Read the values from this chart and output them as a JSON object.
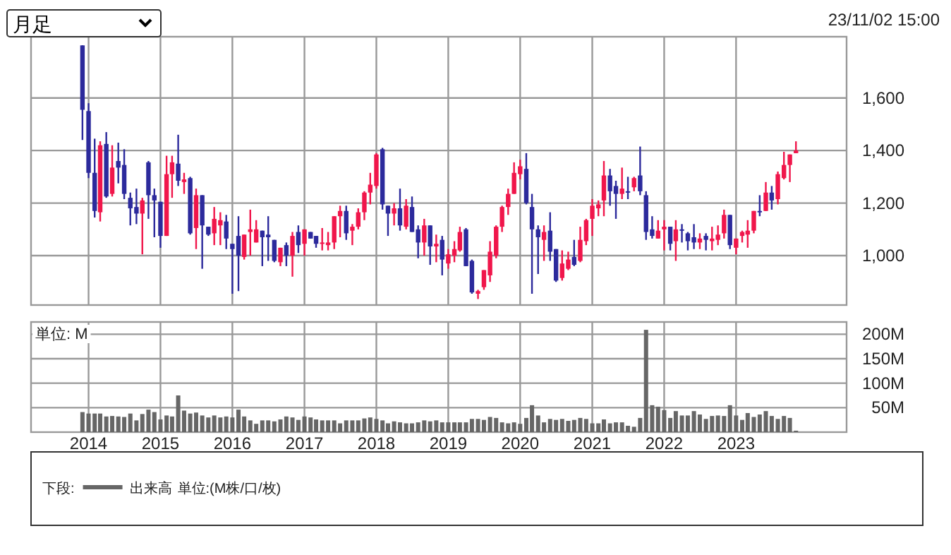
{
  "chart_data": [
    {
      "type": "candlestick",
      "x": [
        "2013-12",
        "2014-01",
        "2014-02",
        "2014-03",
        "2014-04",
        "2014-05",
        "2014-06",
        "2014-07",
        "2014-08",
        "2014-09",
        "2014-10",
        "2014-11",
        "2014-12",
        "2015-01",
        "2015-02",
        "2015-03",
        "2015-04",
        "2015-05",
        "2015-06",
        "2015-07",
        "2015-08",
        "2015-09",
        "2015-10",
        "2015-11",
        "2015-12",
        "2016-01",
        "2016-02",
        "2016-03",
        "2016-04",
        "2016-05",
        "2016-06",
        "2016-07",
        "2016-08",
        "2016-09",
        "2016-10",
        "2016-11",
        "2016-12",
        "2017-01",
        "2017-02",
        "2017-03",
        "2017-04",
        "2017-05",
        "2017-06",
        "2017-07",
        "2017-08",
        "2017-09",
        "2017-10",
        "2017-11",
        "2017-12",
        "2018-01",
        "2018-02",
        "2018-03",
        "2018-04",
        "2018-05",
        "2018-06",
        "2018-07",
        "2018-08",
        "2018-09",
        "2018-10",
        "2018-11",
        "2018-12",
        "2019-01",
        "2019-02",
        "2019-03",
        "2019-04",
        "2019-05",
        "2019-06",
        "2019-07",
        "2019-08",
        "2019-09",
        "2019-10",
        "2019-11",
        "2019-12",
        "2020-01",
        "2020-02",
        "2020-03",
        "2020-04",
        "2020-05",
        "2020-06",
        "2020-07",
        "2020-08",
        "2020-09",
        "2020-10",
        "2020-11",
        "2020-12",
        "2021-01",
        "2021-02",
        "2021-03",
        "2021-04",
        "2021-05",
        "2021-06",
        "2021-07",
        "2021-08",
        "2021-09",
        "2021-10",
        "2021-11",
        "2021-12",
        "2022-01",
        "2022-02",
        "2022-03",
        "2022-04",
        "2022-05",
        "2022-06",
        "2022-07",
        "2022-08",
        "2022-09",
        "2022-10",
        "2022-11",
        "2022-12",
        "2023-01",
        "2023-02",
        "2023-03",
        "2023-04",
        "2023-05",
        "2023-06",
        "2023-07",
        "2023-08",
        "2023-09",
        "2023-10",
        "2023-11"
      ],
      "ohlc": [
        [
          1800,
          1800,
          1440,
          1555
        ],
        [
          1550,
          1580,
          1295,
          1315
        ],
        [
          1315,
          1445,
          1145,
          1170
        ],
        [
          1165,
          1435,
          1130,
          1420
        ],
        [
          1425,
          1470,
          1220,
          1225
        ],
        [
          1235,
          1420,
          1225,
          1335
        ],
        [
          1360,
          1430,
          1275,
          1335
        ],
        [
          1345,
          1405,
          1215,
          1235
        ],
        [
          1220,
          1240,
          1115,
          1180
        ],
        [
          1185,
          1255,
          1120,
          1160
        ],
        [
          1160,
          1220,
          1005,
          1210
        ],
        [
          1355,
          1360,
          1140,
          1230
        ],
        [
          1230,
          1255,
          1070,
          1210
        ],
        [
          1205,
          1205,
          1030,
          1075
        ],
        [
          1075,
          1380,
          1075,
          1310
        ],
        [
          1310,
          1380,
          1220,
          1355
        ],
        [
          1350,
          1460,
          1265,
          1285
        ],
        [
          1280,
          1315,
          1235,
          1290
        ],
        [
          1295,
          1300,
          1080,
          1085
        ],
        [
          1105,
          1255,
          1025,
          1230
        ],
        [
          1230,
          1230,
          950,
          1115
        ],
        [
          1110,
          1110,
          1075,
          1080
        ],
        [
          1085,
          1185,
          1040,
          1140
        ],
        [
          1115,
          1165,
          1040,
          1135
        ],
        [
          1130,
          1155,
          1025,
          1065
        ],
        [
          1045,
          1045,
          855,
          1025
        ],
        [
          1075,
          1150,
          865,
          1000
        ],
        [
          995,
          1080,
          985,
          1080
        ],
        [
          1090,
          1175,
          1000,
          1100
        ],
        [
          1050,
          1135,
          1050,
          1100
        ],
        [
          1095,
          1095,
          960,
          1070
        ],
        [
          1080,
          1150,
          980,
          1070
        ],
        [
          1060,
          1060,
          975,
          980
        ],
        [
          975,
          1030,
          960,
          1030
        ],
        [
          1040,
          1050,
          960,
          1000
        ],
        [
          1000,
          1090,
          920,
          1075
        ],
        [
          1090,
          1115,
          1010,
          1040
        ],
        [
          1045,
          1100,
          1000,
          1100
        ],
        [
          1090,
          1090,
          1065,
          1065
        ],
        [
          1075,
          1075,
          1030,
          1045
        ],
        [
          1045,
          1105,
          1020,
          1050
        ],
        [
          1040,
          1090,
          1020,
          1050
        ],
        [
          1050,
          1150,
          1025,
          1150
        ],
        [
          1150,
          1190,
          1070,
          1170
        ],
        [
          1170,
          1190,
          1060,
          1085
        ],
        [
          1095,
          1120,
          1040,
          1110
        ],
        [
          1110,
          1180,
          1100,
          1165
        ],
        [
          1165,
          1245,
          1135,
          1240
        ],
        [
          1240,
          1315,
          1195,
          1270
        ],
        [
          1265,
          1390,
          1255,
          1385
        ],
        [
          1405,
          1410,
          1175,
          1195
        ],
        [
          1190,
          1190,
          1075,
          1160
        ],
        [
          1160,
          1200,
          1115,
          1180
        ],
        [
          1180,
          1255,
          1095,
          1115
        ],
        [
          1110,
          1215,
          1100,
          1190
        ],
        [
          1185,
          1225,
          1090,
          1090
        ],
        [
          1100,
          1115,
          990,
          1050
        ],
        [
          1050,
          1140,
          1000,
          1115
        ],
        [
          1115,
          1115,
          965,
          1035
        ],
        [
          1035,
          1080,
          975,
          1045
        ],
        [
          1060,
          1075,
          925,
          985
        ],
        [
          970,
          1025,
          950,
          1005
        ],
        [
          1000,
          1055,
          975,
          1025
        ],
        [
          1020,
          1110,
          1015,
          1090
        ],
        [
          1100,
          1105,
          960,
          960
        ],
        [
          980,
          985,
          855,
          860
        ],
        [
          855,
          870,
          835,
          865
        ],
        [
          880,
          945,
          870,
          945
        ],
        [
          925,
          1055,
          900,
          1015
        ],
        [
          1000,
          1115,
          990,
          1110
        ],
        [
          1110,
          1190,
          1090,
          1185
        ],
        [
          1185,
          1255,
          1155,
          1235
        ],
        [
          1235,
          1355,
          1235,
          1315
        ],
        [
          1310,
          1365,
          1290,
          1340
        ],
        [
          1330,
          1390,
          1195,
          1200
        ],
        [
          1185,
          1235,
          855,
          1100
        ],
        [
          1100,
          1115,
          930,
          1070
        ],
        [
          1060,
          1115,
          980,
          1090
        ],
        [
          1095,
          1165,
          980,
          1015
        ],
        [
          1025,
          1025,
          900,
          905
        ],
        [
          915,
          1020,
          905,
          970
        ],
        [
          950,
          1015,
          945,
          985
        ],
        [
          995,
          1060,
          960,
          965
        ],
        [
          980,
          1110,
          975,
          1060
        ],
        [
          1055,
          1140,
          1040,
          1135
        ],
        [
          1140,
          1215,
          1075,
          1190
        ],
        [
          1180,
          1210,
          1150,
          1195
        ],
        [
          1210,
          1360,
          1150,
          1305
        ],
        [
          1305,
          1330,
          1190,
          1245
        ],
        [
          1265,
          1285,
          1140,
          1235
        ],
        [
          1235,
          1335,
          1215,
          1255
        ],
        [
          1245,
          1300,
          1215,
          1240
        ],
        [
          1260,
          1300,
          1245,
          1295
        ],
        [
          1305,
          1415,
          1230,
          1245
        ],
        [
          1230,
          1245,
          1060,
          1090
        ],
        [
          1100,
          1150,
          1065,
          1075
        ],
        [
          1065,
          1135,
          1065,
          1095
        ],
        [
          1100,
          1135,
          1020,
          1110
        ],
        [
          1110,
          1110,
          1020,
          1045
        ],
        [
          1055,
          1135,
          980,
          1100
        ],
        [
          1100,
          1120,
          1050,
          1095
        ],
        [
          1085,
          1090,
          1020,
          1055
        ],
        [
          1070,
          1120,
          1025,
          1050
        ],
        [
          1050,
          1085,
          1025,
          1065
        ],
        [
          1075,
          1085,
          1020,
          1060
        ],
        [
          1055,
          1110,
          1020,
          1065
        ],
        [
          1060,
          1115,
          1040,
          1080
        ],
        [
          1085,
          1175,
          1065,
          1155
        ],
        [
          1155,
          1155,
          1025,
          1040
        ],
        [
          1030,
          1065,
          1005,
          1065
        ],
        [
          1075,
          1095,
          1050,
          1090
        ],
        [
          1080,
          1135,
          1030,
          1095
        ],
        [
          1095,
          1170,
          1085,
          1170
        ],
        [
          1170,
          1230,
          1150,
          1165
        ],
        [
          1170,
          1280,
          1170,
          1240
        ],
        [
          1240,
          1265,
          1175,
          1210
        ],
        [
          1215,
          1320,
          1195,
          1310
        ],
        [
          1295,
          1395,
          1290,
          1345
        ],
        [
          1345,
          1385,
          1280,
          1385
        ],
        [
          1390,
          1435,
          1390,
          1400
        ]
      ],
      "colors": [
        "#2c2a9c",
        "#2c2a9c",
        "#2c2a9c",
        "#f0164b",
        "#2c2a9c",
        "#f0164b",
        "#2c2a9c",
        "#2c2a9c",
        "#2c2a9c",
        "#2c2a9c",
        "#f0164b",
        "#2c2a9c",
        "#2c2a9c",
        "#2c2a9c",
        "#f0164b",
        "#f0164b",
        "#2c2a9c",
        "#f0164b",
        "#2c2a9c",
        "#f0164b",
        "#2c2a9c",
        "#2c2a9c",
        "#f0164b",
        "#f0164b",
        "#2c2a9c",
        "#2c2a9c",
        "#2c2a9c",
        "#f0164b",
        "#f0164b",
        "#f0164b",
        "#2c2a9c",
        "#2c2a9c",
        "#2c2a9c",
        "#f0164b",
        "#2c2a9c",
        "#f0164b",
        "#2c2a9c",
        "#f0164b",
        "#2c2a9c",
        "#2c2a9c",
        "#f0164b",
        "#f0164b",
        "#f0164b",
        "#f0164b",
        "#2c2a9c",
        "#f0164b",
        "#f0164b",
        "#f0164b",
        "#f0164b",
        "#f0164b",
        "#2c2a9c",
        "#2c2a9c",
        "#f0164b",
        "#2c2a9c",
        "#f0164b",
        "#2c2a9c",
        "#2c2a9c",
        "#f0164b",
        "#2c2a9c",
        "#f0164b",
        "#2c2a9c",
        "#f0164b",
        "#f0164b",
        "#f0164b",
        "#2c2a9c",
        "#2c2a9c",
        "#f0164b",
        "#f0164b",
        "#f0164b",
        "#f0164b",
        "#f0164b",
        "#f0164b",
        "#f0164b",
        "#f0164b",
        "#2c2a9c",
        "#2c2a9c",
        "#2c2a9c",
        "#f0164b",
        "#2c2a9c",
        "#2c2a9c",
        "#f0164b",
        "#f0164b",
        "#2c2a9c",
        "#f0164b",
        "#f0164b",
        "#f0164b",
        "#f0164b",
        "#f0164b",
        "#2c2a9c",
        "#2c2a9c",
        "#f0164b",
        "#2c2a9c",
        "#f0164b",
        "#2c2a9c",
        "#2c2a9c",
        "#2c2a9c",
        "#f0164b",
        "#f0164b",
        "#2c2a9c",
        "#f0164b",
        "#2c2a9c",
        "#2c2a9c",
        "#2c2a9c",
        "#f0164b",
        "#2c2a9c",
        "#f0164b",
        "#f0164b",
        "#f0164b",
        "#2c2a9c",
        "#f0164b",
        "#f0164b",
        "#f0164b",
        "#f0164b",
        "#2c2a9c",
        "#f0164b",
        "#2c2a9c",
        "#f0164b",
        "#f0164b",
        "#f0164b",
        "#f0164b"
      ],
      "xlim": [
        "2013-03-15",
        "2024-07-15"
      ],
      "xticks": [
        "2014",
        "2015",
        "2016",
        "2017",
        "2018",
        "2019",
        "2020",
        "2021",
        "2022",
        "2023"
      ],
      "ylim": [
        812,
        1833
      ],
      "yticks": [
        {
          "value": 1000,
          "label": "1,000"
        },
        {
          "value": 1200,
          "label": "1,200"
        },
        {
          "value": 1400,
          "label": "1,400"
        },
        {
          "value": 1600,
          "label": "1,600"
        }
      ],
      "grid": true,
      "tick_labels": "y",
      "annotations": [
        "月足",
        "23/11/02 15:00"
      ]
    },
    {
      "type": "bar",
      "x": [
        "2013-12",
        "2014-01",
        "2014-02",
        "2014-03",
        "2014-04",
        "2014-05",
        "2014-06",
        "2014-07",
        "2014-08",
        "2014-09",
        "2014-10",
        "2014-11",
        "2014-12",
        "2015-01",
        "2015-02",
        "2015-03",
        "2015-04",
        "2015-05",
        "2015-06",
        "2015-07",
        "2015-08",
        "2015-09",
        "2015-10",
        "2015-11",
        "2015-12",
        "2016-01",
        "2016-02",
        "2016-03",
        "2016-04",
        "2016-05",
        "2016-06",
        "2016-07",
        "2016-08",
        "2016-09",
        "2016-10",
        "2016-11",
        "2016-12",
        "2017-01",
        "2017-02",
        "2017-03",
        "2017-04",
        "2017-05",
        "2017-06",
        "2017-07",
        "2017-08",
        "2017-09",
        "2017-10",
        "2017-11",
        "2017-12",
        "2018-01",
        "2018-02",
        "2018-03",
        "2018-04",
        "2018-05",
        "2018-06",
        "2018-07",
        "2018-08",
        "2018-09",
        "2018-10",
        "2018-11",
        "2018-12",
        "2019-01",
        "2019-02",
        "2019-03",
        "2019-04",
        "2019-05",
        "2019-06",
        "2019-07",
        "2019-08",
        "2019-09",
        "2019-10",
        "2019-11",
        "2019-12",
        "2020-01",
        "2020-02",
        "2020-03",
        "2020-04",
        "2020-05",
        "2020-06",
        "2020-07",
        "2020-08",
        "2020-09",
        "2020-10",
        "2020-11",
        "2020-12",
        "2021-01",
        "2021-02",
        "2021-03",
        "2021-04",
        "2021-05",
        "2021-06",
        "2021-07",
        "2021-08",
        "2021-09",
        "2021-10",
        "2021-11",
        "2021-12",
        "2022-01",
        "2022-02",
        "2022-03",
        "2022-04",
        "2022-05",
        "2022-06",
        "2022-07",
        "2022-08",
        "2022-09",
        "2022-10",
        "2022-11",
        "2022-12",
        "2023-01",
        "2023-02",
        "2023-03",
        "2023-04",
        "2023-05",
        "2023-06",
        "2023-07",
        "2023-08",
        "2023-09",
        "2023-10",
        "2023-11"
      ],
      "series": [
        {
          "name": "出来高",
          "color": "#666666",
          "values": [
            41,
            38,
            38,
            38,
            32,
            33,
            32,
            31,
            38,
            24,
            37,
            46,
            41,
            26,
            34,
            32,
            75,
            44,
            38,
            40,
            34,
            30,
            34,
            30,
            32,
            30,
            46,
            32,
            24,
            17,
            24,
            24,
            22,
            26,
            32,
            30,
            25,
            32,
            30,
            26,
            24,
            24,
            24,
            18,
            24,
            24,
            24,
            28,
            30,
            27,
            24,
            18,
            22,
            20,
            18,
            18,
            20,
            24,
            22,
            24,
            20,
            20,
            20,
            20,
            20,
            27,
            27,
            25,
            31,
            29,
            20,
            18,
            20,
            17,
            29,
            55,
            34,
            20,
            27,
            25,
            27,
            23,
            25,
            29,
            27,
            18,
            18,
            26,
            18,
            20,
            20,
            13,
            11,
            29,
            209,
            55,
            52,
            45,
            29,
            43,
            34,
            34,
            43,
            36,
            27,
            33,
            34,
            33,
            55,
            34,
            25,
            39,
            31,
            36,
            43,
            33,
            27,
            33,
            29,
            3
          ]
        }
      ],
      "xlim": [
        "2013-03-15",
        "2024-07-15"
      ],
      "xticks": [
        "2014",
        "2015",
        "2016",
        "2017",
        "2018",
        "2019",
        "2020",
        "2021",
        "2022",
        "2023"
      ],
      "ylim": [
        0,
        225
      ],
      "yticks": [
        {
          "value": 50,
          "label": "50M"
        },
        {
          "value": 100,
          "label": "100M"
        },
        {
          "value": 150,
          "label": "150M"
        },
        {
          "value": 200,
          "label": "200M"
        }
      ],
      "grid": true,
      "ylabel": "単位: M",
      "legend": "bottom",
      "legend_title": "下段:",
      "annotations": [
        "単位:(M株/口/枚)"
      ]
    }
  ]
}
